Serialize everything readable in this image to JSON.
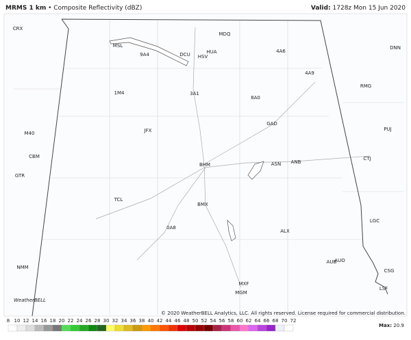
{
  "header": {
    "title": "MRMS 1 km",
    "separator": "•",
    "subtitle": "Composite Reflectivity (dBZ)",
    "valid_label": "Valid:",
    "valid_time": "1728z Mon 15 Jun 2020"
  },
  "map": {
    "stations": [
      "CRX",
      "MSL",
      "9A4",
      "DCU",
      "HSV",
      "HUA",
      "MDQ",
      "4A6",
      "DNN",
      "4A9",
      "RMG",
      "1M4",
      "3A1",
      "8A0",
      "GAD",
      "PUJ",
      "M40",
      "JFX",
      "CBM",
      "CTJ",
      "BHM",
      "ASN",
      "ANB",
      "GTR",
      "TCL",
      "BMX",
      "LGC",
      "0A8",
      "ALX",
      "AUB",
      "AUO",
      "NMM",
      "CSG",
      "MXF",
      "MGM",
      "LSF"
    ],
    "logo": "WeatherBELL",
    "copyright": "© 2020 WeatherBELL Analytics, LLC. All rights reserved. License required for commercial distribution."
  },
  "colorbar": {
    "ticks": [
      8,
      10,
      12,
      14,
      16,
      18,
      20,
      22,
      24,
      26,
      28,
      30,
      32,
      34,
      36,
      38,
      40,
      42,
      44,
      46,
      48,
      50,
      52,
      54,
      56,
      58,
      60,
      62,
      64,
      66,
      68,
      70,
      72
    ],
    "colors": [
      "#ffffff",
      "#eeeeee",
      "#dddddd",
      "#bbbbbb",
      "#999999",
      "#777777",
      "#55dd55",
      "#33cc33",
      "#22aa22",
      "#118811",
      "#226622",
      "#ffff66",
      "#eedd33",
      "#ddbb22",
      "#cc9911",
      "#ff9900",
      "#ff7700",
      "#ff5500",
      "#ee3300",
      "#dd0000",
      "#bb0000",
      "#990000",
      "#770000",
      "#aa2244",
      "#cc3377",
      "#ee55aa",
      "#ff77cc",
      "#dd66ee",
      "#bb44dd",
      "#9922cc",
      "#eeeeff",
      "#ffffff"
    ],
    "max_label": "Max:",
    "max_value": 20.9
  }
}
